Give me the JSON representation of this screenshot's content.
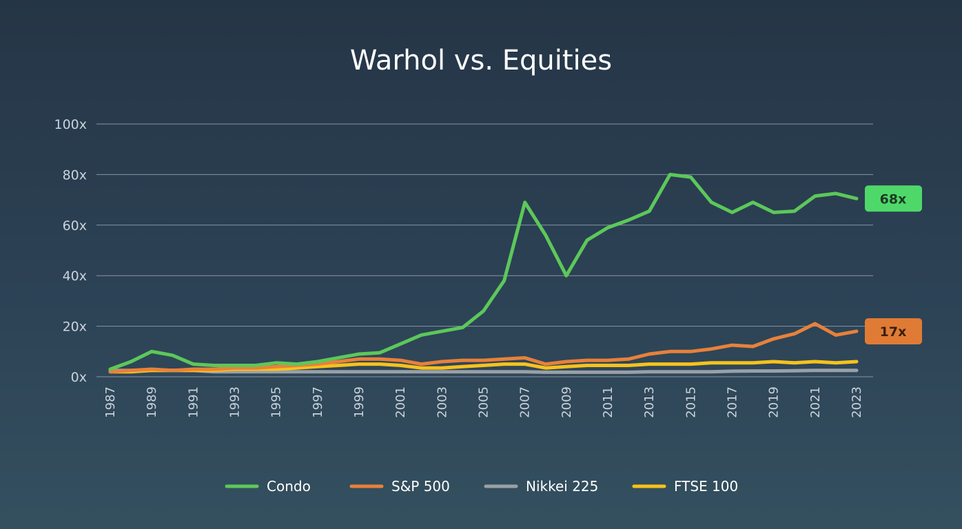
{
  "chart_data": {
    "type": "line",
    "title": "Warhol vs. Equities",
    "xlabel": "",
    "ylabel": "",
    "ylim": [
      0,
      100
    ],
    "y_ticks": [
      0,
      20,
      40,
      60,
      80,
      100
    ],
    "y_tick_labels": [
      "0x",
      "20x",
      "40x",
      "60x",
      "80x",
      "100x"
    ],
    "x_tick_labels": [
      "1987",
      "1989",
      "1991",
      "1993",
      "1995",
      "1997",
      "1999",
      "2001",
      "2003",
      "2005",
      "2007",
      "2009",
      "2011",
      "2013",
      "2015",
      "2017",
      "2019",
      "2021",
      "2023"
    ],
    "x": [
      1987,
      1988,
      1989,
      1990,
      1991,
      1992,
      1993,
      1994,
      1995,
      1996,
      1997,
      1998,
      1999,
      2000,
      2001,
      2002,
      2003,
      2004,
      2005,
      2006,
      2007,
      2008,
      2009,
      2010,
      2011,
      2012,
      2013,
      2014,
      2015,
      2016,
      2017,
      2018,
      2019,
      2020,
      2021,
      2022,
      2023
    ],
    "grid": true,
    "legend_position": "bottom",
    "series": [
      {
        "name": "Condo",
        "color": "#5cc85a",
        "values": [
          3,
          6,
          10,
          8.5,
          5,
          4.5,
          4.5,
          4.5,
          5.5,
          5,
          6,
          7.5,
          9,
          9.5,
          13,
          16.5,
          18,
          19.5,
          26,
          38,
          69,
          56,
          40,
          54,
          59,
          62,
          65.5,
          80,
          79,
          69,
          65,
          69,
          65,
          65.5,
          71.5,
          72.5,
          70.5
        ]
      },
      {
        "name": "S&P 500",
        "color": "#e8813a",
        "values": [
          2,
          2.5,
          3,
          2.5,
          3,
          3,
          3.5,
          3.5,
          4,
          4.5,
          5,
          6,
          7,
          7,
          6.5,
          5,
          6,
          6.5,
          6.5,
          7,
          7.5,
          5,
          6,
          6.5,
          6.5,
          7,
          9,
          10,
          10,
          11,
          12.5,
          12,
          15,
          17,
          21,
          16.5,
          18
        ]
      },
      {
        "name": "Nikkei 225",
        "color": "#9aa0a6",
        "values": [
          2.5,
          2.5,
          2.5,
          2.5,
          2.5,
          2,
          2,
          2,
          2,
          2,
          2,
          2,
          2,
          2,
          2,
          2,
          2,
          2,
          2,
          2,
          2,
          1.8,
          1.8,
          1.8,
          1.8,
          1.8,
          2,
          2,
          2,
          2,
          2.2,
          2.3,
          2.3,
          2.4,
          2.5,
          2.5,
          2.5
        ]
      },
      {
        "name": "FTSE 100",
        "color": "#f6c21c",
        "values": [
          2,
          2,
          2.5,
          2.5,
          2.5,
          2.5,
          3,
          3,
          3,
          3.5,
          4,
          4.5,
          5,
          5,
          4.5,
          3.5,
          3.5,
          4,
          4.5,
          5,
          5,
          3.5,
          4,
          4.5,
          4.5,
          4.5,
          5,
          5,
          5,
          5.5,
          5.5,
          5.5,
          6,
          5.5,
          6,
          5.5,
          6
        ]
      }
    ],
    "annotations": [
      {
        "label": "68x",
        "series": "Condo",
        "color": "#4fd86a",
        "text_color": "#1d3a22"
      },
      {
        "label": "17x",
        "series": "S&P 500",
        "color": "#e07b35",
        "text_color": "#3a1f0d"
      }
    ]
  }
}
